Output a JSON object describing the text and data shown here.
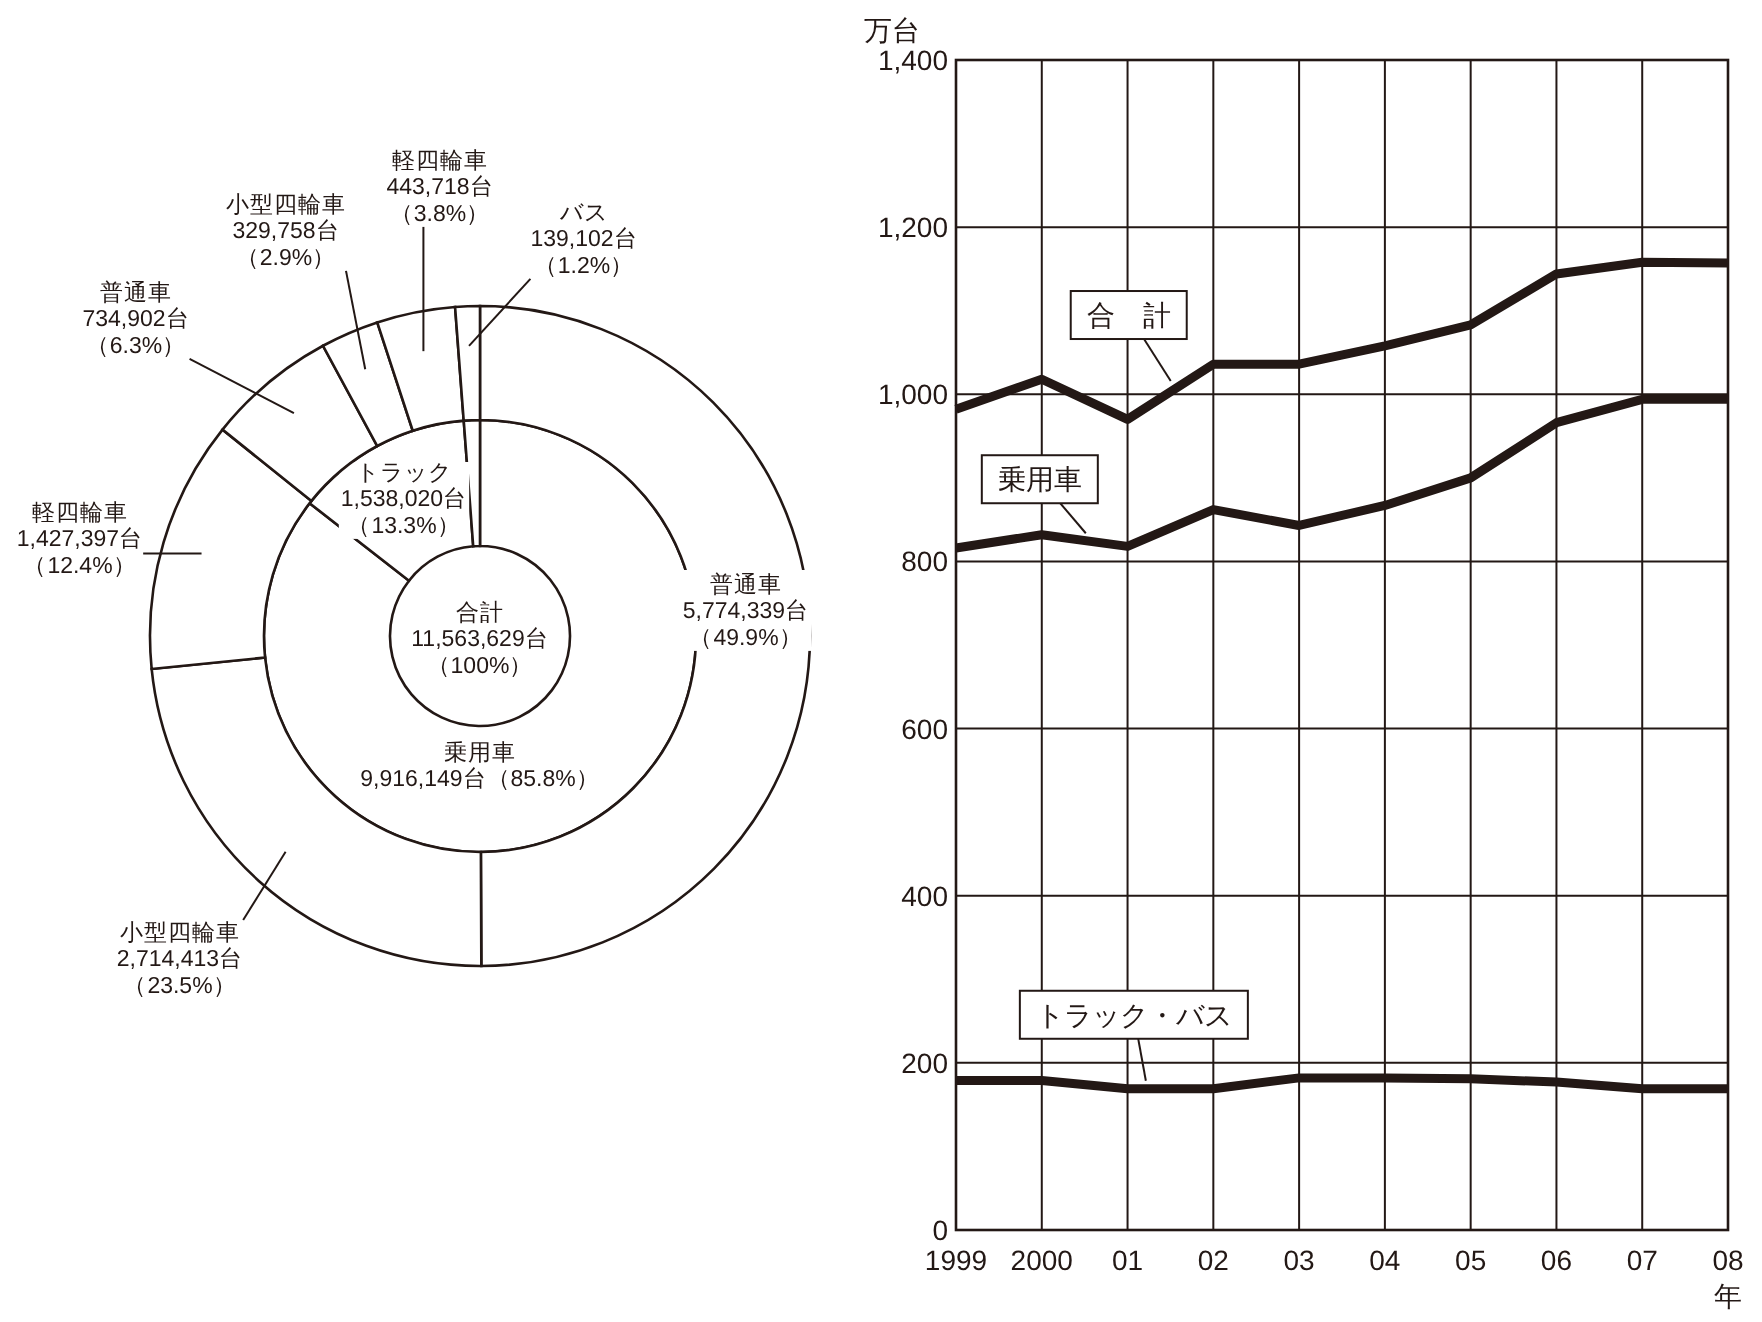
{
  "chart_data": [
    {
      "type": "donut",
      "annotations": [
        "合計",
        "11,563,629台",
        "（100%）"
      ],
      "categories": [
        "乗用車",
        "トラック",
        null
      ],
      "values": [
        9916149,
        1538020,
        139102
      ],
      "colors": [
        "#ffffff",
        "#ffffff",
        "#ffffff"
      ],
      "value_labels": [
        "9,916,149台（85.8%）",
        "1,538,020台（13.3%）",
        null
      ]
    },
    {
      "type": "donut",
      "categories": [
        "普通車",
        "小型四輪車",
        "軽四輪車",
        "普通車",
        "小型四輪車",
        "軽四輪車",
        "バス"
      ],
      "values": [
        5774339,
        2714413,
        1427397,
        734902,
        329758,
        443718,
        139102
      ],
      "colors": [
        "#ffffff",
        "#ffffff",
        "#ffffff",
        "#ffffff",
        "#ffffff",
        "#ffffff",
        "#ffffff"
      ],
      "value_labels": [
        "5,774,339台（49.9%）",
        "2,714,413台（23.5%）",
        "1,427,397台（12.4%）",
        "734,902台（6.3%）",
        "329,758台（2.9%）",
        "443,718台（3.8%）",
        "139,102台（1.2%）"
      ]
    },
    {
      "type": "line",
      "ylabel": "万台",
      "xlabel": "年",
      "categories": [
        "1999",
        "2000",
        "01",
        "02",
        "03",
        "04",
        "05",
        "06",
        "07",
        "08"
      ],
      "ylim": [
        0,
        1400
      ],
      "yticks": [
        0,
        {
          "value": 200,
          "label": "200"
        },
        {
          "value": 400,
          "label": "400"
        },
        {
          "value": 600,
          "label": "600"
        },
        {
          "value": 800,
          "label": "800"
        },
        {
          "value": 1000,
          "label": "1,000"
        },
        {
          "value": 1200,
          "label": "1,200"
        },
        {
          "value": 1400,
          "label": "1,400"
        }
      ],
      "grid": true,
      "marker": "none",
      "line_style": "solid",
      "series": [
        {
          "name": "合　計",
          "color": "#231815",
          "values": [
            982,
            1018,
            970,
            1036,
            1036,
            1058,
            1083,
            1144,
            1158,
            1157
          ]
        },
        {
          "name": "乗用車",
          "color": "#231815",
          "values": [
            816,
            832,
            818,
            862,
            843,
            867,
            900,
            966,
            994,
            994
          ]
        },
        {
          "name": "トラック・バス",
          "color": "#231815",
          "values": [
            179,
            179,
            169,
            169,
            182,
            182,
            181,
            177,
            169,
            169
          ]
        }
      ]
    }
  ]
}
